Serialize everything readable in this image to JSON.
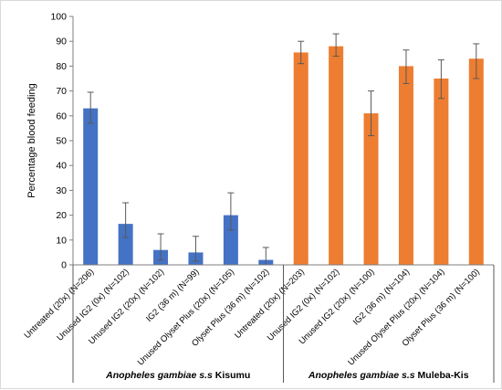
{
  "chart_data": {
    "type": "bar",
    "ylabel": "Percentage blood feeding",
    "ylim": [
      0,
      100
    ],
    "yticks": [
      0,
      10,
      20,
      30,
      40,
      50,
      60,
      70,
      80,
      90,
      100
    ],
    "grid": false,
    "legend": "none",
    "categories": [
      "Untreated (20x) (N=206)",
      "Unused IG2 (0x) (N=102)",
      "Unused IG2 (20x) (N=102)",
      "IG2 (36 m) (N=99)",
      "Unused Olyset Plus (20x) (N=105)",
      "Olyset Plus (36 m) (N=102)",
      "Untreated (20x) (N=203)",
      "Unused IG2 (0x) (N=102)",
      "Unused IG2 (20x) (N=100)",
      "IG2 (36 m) (N=104)",
      "Unused Olyset Plus (20x) (N=104)",
      "Olyset Plus (36 m) (N=100)"
    ],
    "values": [
      63,
      16.5,
      6,
      5,
      20,
      2,
      85.5,
      88,
      61,
      80,
      75,
      83
    ],
    "error_upper": [
      69.5,
      25,
      12.5,
      11.5,
      29,
      7,
      90,
      93,
      70,
      86.5,
      82.5,
      89
    ],
    "error_lower": [
      57,
      11,
      2,
      1.5,
      14,
      0,
      81,
      84,
      52,
      73,
      67,
      75
    ],
    "colors": [
      "#4472c4",
      "#4472c4",
      "#4472c4",
      "#4472c4",
      "#4472c4",
      "#4472c4",
      "#ed7d31",
      "#ed7d31",
      "#ed7d31",
      "#ed7d31",
      "#ed7d31",
      "#ed7d31"
    ],
    "groups": [
      {
        "italic": "Anopheles gambiae s.s",
        "rest": " Kisumu",
        "start": 0,
        "end": 5
      },
      {
        "italic": "Anopheles gambiae s.s",
        "rest": " Muleba-Kis",
        "start": 6,
        "end": 11
      }
    ]
  }
}
